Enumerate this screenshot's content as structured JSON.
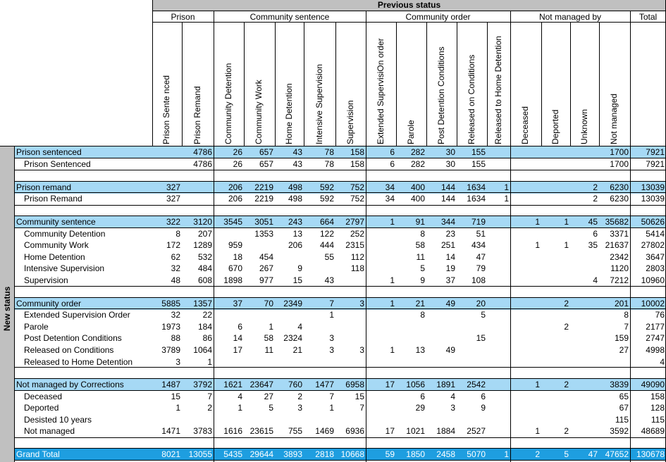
{
  "header": {
    "top": "Previous status",
    "side": "New status",
    "groups": [
      "Prison",
      "Community sentence",
      "Community order",
      "Not managed by",
      "Total"
    ],
    "columns": [
      "Prison Sente nced",
      "Prison Remand",
      "Community Detention",
      "Community Work",
      "Home Detention",
      "Intensive Supervision",
      "Supervision",
      "Extended SupervisiOn order",
      "Parole",
      "Post Detention Conditions",
      "Released on Conditions",
      "Released to Home Detention",
      "Deceased",
      "Deported",
      "Unknown",
      "Not managed"
    ]
  },
  "rows": [
    {
      "label": "Prison sentenced",
      "kind": "group",
      "values": [
        "",
        "4786",
        "26",
        "657",
        "43",
        "78",
        "158",
        "6",
        "282",
        "30",
        "155",
        "",
        "",
        "",
        "",
        "1700",
        "7921"
      ]
    },
    {
      "label": "Prison Sentenced",
      "kind": "item",
      "values": [
        "",
        "4786",
        "26",
        "657",
        "43",
        "78",
        "158",
        "6",
        "282",
        "30",
        "155",
        "",
        "",
        "",
        "",
        "1700",
        "7921"
      ]
    },
    {
      "label": "Prison remand",
      "kind": "group",
      "values": [
        "327",
        "",
        "206",
        "2219",
        "498",
        "592",
        "752",
        "34",
        "400",
        "144",
        "1634",
        "1",
        "",
        "",
        "2",
        "6230",
        "13039"
      ]
    },
    {
      "label": "Prison Remand",
      "kind": "item",
      "values": [
        "327",
        "",
        "206",
        "2219",
        "498",
        "592",
        "752",
        "34",
        "400",
        "144",
        "1634",
        "1",
        "",
        "",
        "2",
        "6230",
        "13039"
      ]
    },
    {
      "label": "Community sentence",
      "kind": "group",
      "values": [
        "322",
        "3120",
        "3545",
        "3051",
        "243",
        "664",
        "2797",
        "1",
        "91",
        "344",
        "719",
        "",
        "1",
        "1",
        "45",
        "35682",
        "50626"
      ]
    },
    {
      "label": "Community Detention",
      "kind": "item",
      "values": [
        "8",
        "207",
        "",
        "1353",
        "13",
        "122",
        "252",
        "",
        "8",
        "23",
        "51",
        "",
        "",
        "",
        "6",
        "3371",
        "5414"
      ]
    },
    {
      "label": "Community Work",
      "kind": "item",
      "values": [
        "172",
        "1289",
        "959",
        "",
        "206",
        "444",
        "2315",
        "",
        "58",
        "251",
        "434",
        "",
        "1",
        "1",
        "35",
        "21637",
        "27802"
      ]
    },
    {
      "label": "Home Detention",
      "kind": "item",
      "values": [
        "62",
        "532",
        "18",
        "454",
        "",
        "55",
        "112",
        "",
        "11",
        "14",
        "47",
        "",
        "",
        "",
        "",
        "2342",
        "3647"
      ]
    },
    {
      "label": "Intensive Supervision",
      "kind": "item",
      "values": [
        "32",
        "484",
        "670",
        "267",
        "9",
        "",
        "118",
        "",
        "5",
        "19",
        "79",
        "",
        "",
        "",
        "",
        "1120",
        "2803"
      ]
    },
    {
      "label": "Supervision",
      "kind": "item",
      "values": [
        "48",
        "608",
        "1898",
        "977",
        "15",
        "43",
        "",
        "1",
        "9",
        "37",
        "108",
        "",
        "",
        "",
        "4",
        "7212",
        "10960"
      ]
    },
    {
      "label": "Community order",
      "kind": "group",
      "values": [
        "5885",
        "1357",
        "37",
        "70",
        "2349",
        "7",
        "3",
        "1",
        "21",
        "49",
        "20",
        "",
        "",
        "2",
        "",
        "201",
        "10002"
      ]
    },
    {
      "label": "Extended Supervision Order",
      "kind": "item",
      "values": [
        "32",
        "22",
        "",
        "",
        "",
        "1",
        "",
        "",
        "8",
        "",
        "5",
        "",
        "",
        "",
        "",
        "8",
        "76"
      ]
    },
    {
      "label": "Parole",
      "kind": "item",
      "values": [
        "1973",
        "184",
        "6",
        "1",
        "4",
        "",
        "",
        "",
        "",
        "",
        "",
        "",
        "",
        "2",
        "",
        "7",
        "2177"
      ]
    },
    {
      "label": "Post Detention Conditions",
      "kind": "item",
      "values": [
        "88",
        "86",
        "14",
        "58",
        "2324",
        "3",
        "",
        "",
        "",
        "",
        "15",
        "",
        "",
        "",
        "",
        "159",
        "2747"
      ]
    },
    {
      "label": "Released on Conditions",
      "kind": "item",
      "values": [
        "3789",
        "1064",
        "17",
        "11",
        "21",
        "3",
        "3",
        "1",
        "13",
        "49",
        "",
        "",
        "",
        "",
        "",
        "27",
        "4998"
      ]
    },
    {
      "label": "Released to Home Detention",
      "kind": "item",
      "values": [
        "3",
        "1",
        "",
        "",
        "",
        "",
        "",
        "",
        "",
        "",
        "",
        "",
        "",
        "",
        "",
        "",
        "4"
      ]
    },
    {
      "label": "Not managed by Corrections",
      "kind": "group",
      "values": [
        "1487",
        "3792",
        "1621",
        "23647",
        "760",
        "1477",
        "6958",
        "17",
        "1056",
        "1891",
        "2542",
        "",
        "1",
        "2",
        "",
        "3839",
        "49090"
      ]
    },
    {
      "label": "Deceased",
      "kind": "item",
      "values": [
        "15",
        "7",
        "4",
        "27",
        "2",
        "7",
        "15",
        "",
        "6",
        "4",
        "6",
        "",
        "",
        "",
        "",
        "65",
        "158"
      ]
    },
    {
      "label": "Deported",
      "kind": "item",
      "values": [
        "1",
        "2",
        "1",
        "5",
        "3",
        "1",
        "7",
        "",
        "29",
        "3",
        "9",
        "",
        "",
        "",
        "",
        "67",
        "128"
      ]
    },
    {
      "label": "Desisted 10 years",
      "kind": "item",
      "values": [
        "",
        "",
        "",
        "",
        "",
        "",
        "",
        "",
        "",
        "",
        "",
        "",
        "",
        "",
        "",
        "115",
        "115"
      ]
    },
    {
      "label": "Not managed",
      "kind": "item",
      "values": [
        "1471",
        "3783",
        "1616",
        "23615",
        "755",
        "1469",
        "6936",
        "17",
        "1021",
        "1884",
        "2527",
        "",
        "1",
        "2",
        "",
        "3592",
        "48689"
      ]
    },
    {
      "label": "Grand Total",
      "kind": "grand",
      "values": [
        "8021",
        "13055",
        "5435",
        "29644",
        "3893",
        "2818",
        "10668",
        "59",
        "1850",
        "2458",
        "5070",
        "1",
        "2",
        "5",
        "47",
        "47652",
        "130678"
      ]
    }
  ],
  "colors": {
    "group_band": "#a6d9f5",
    "grand_band": "#1e9ee0",
    "side_grey": "#c0c0c0"
  }
}
